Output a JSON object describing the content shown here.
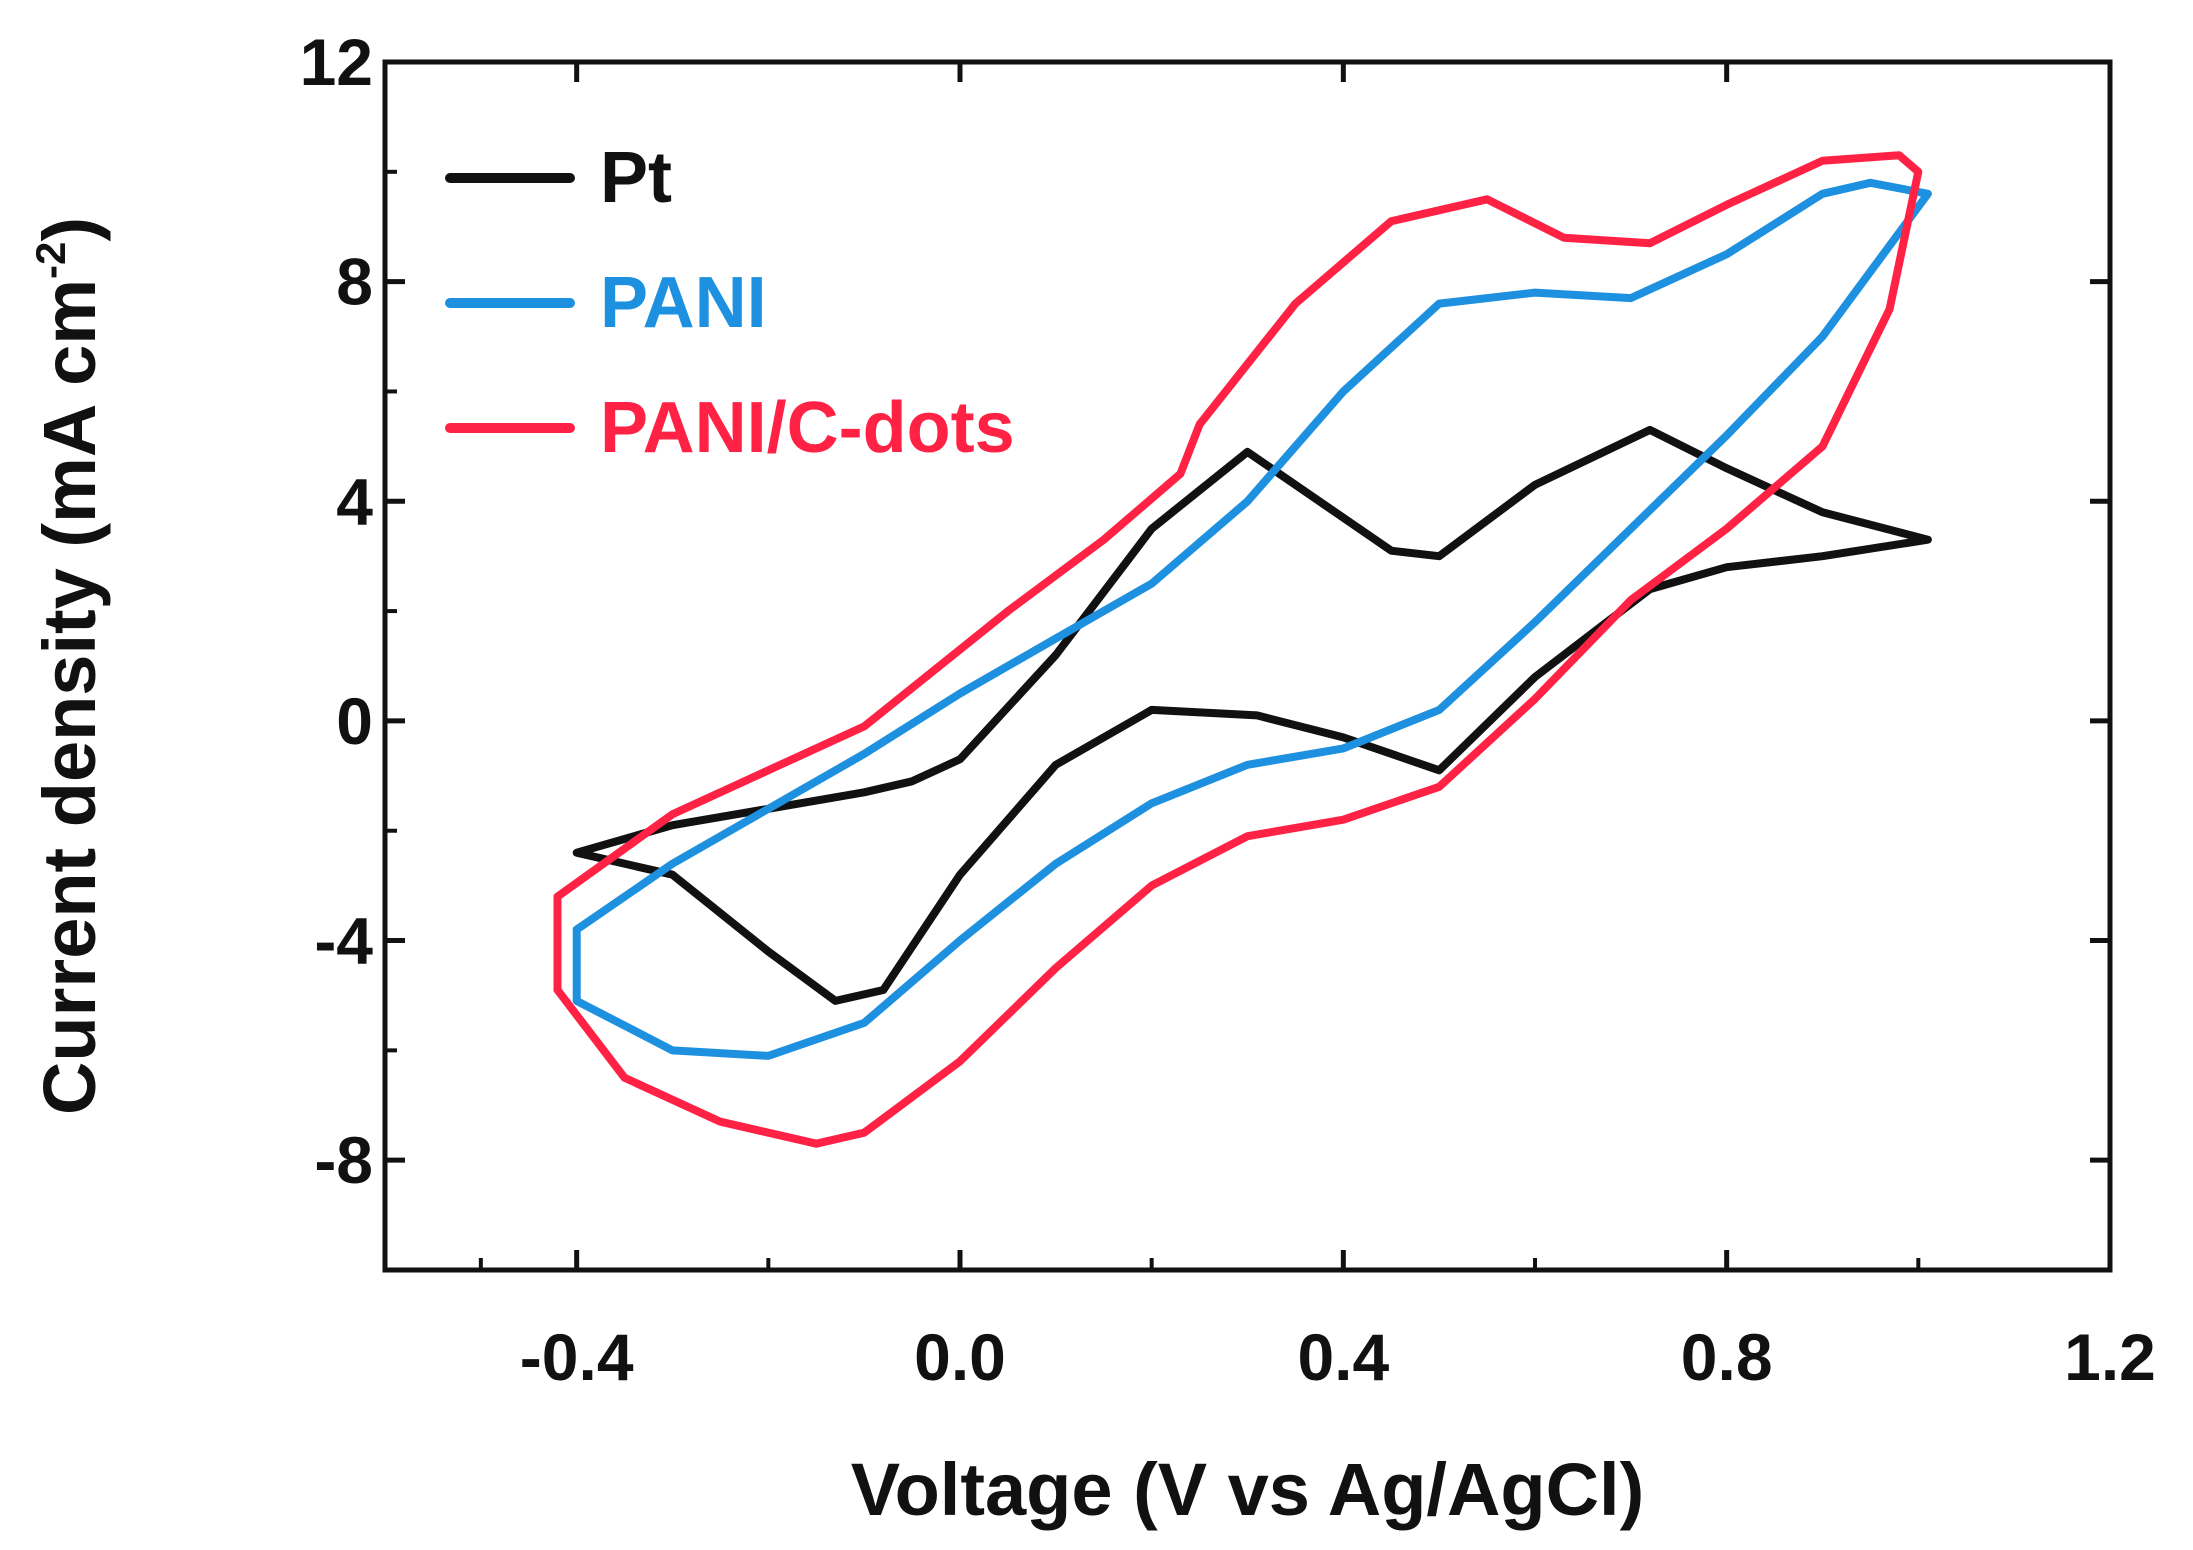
{
  "chart_data": {
    "type": "line",
    "title": "",
    "xlabel": "Voltage (V vs Ag/AgCl)",
    "ylabel": "Current density (mA cm",
    "ylabel_sup": "-2",
    "ylabel_close": ")",
    "xlim": [
      -0.6,
      1.2
    ],
    "ylim": [
      -10,
      12
    ],
    "x_ticks": [
      -0.4,
      0.0,
      0.4,
      0.8,
      1.2
    ],
    "x_tick_labels": [
      "-0.4",
      "0.0",
      "0.4",
      "0.8",
      "1.2"
    ],
    "y_ticks": [
      -8,
      -4,
      0,
      4,
      8,
      12
    ],
    "y_tick_labels": [
      "-8",
      "-4",
      "0",
      "4",
      "8",
      "12"
    ],
    "legend_position": "top-left",
    "grid": false,
    "series": [
      {
        "name": "Pt",
        "color": "#111111",
        "x": [
          -0.4,
          -0.3,
          -0.2,
          -0.13,
          -0.08,
          0.0,
          0.1,
          0.2,
          0.31,
          0.4,
          0.5,
          0.6,
          0.72,
          0.8,
          0.9,
          1.01,
          0.9,
          0.8,
          0.72,
          0.6,
          0.5,
          0.45,
          0.3,
          0.2,
          0.1,
          0.0,
          -0.05,
          -0.1,
          -0.2,
          -0.3,
          -0.4
        ],
        "y": [
          -2.4,
          -2.8,
          -4.2,
          -5.1,
          -4.9,
          -2.8,
          -0.8,
          0.2,
          0.1,
          -0.3,
          -0.9,
          0.8,
          2.4,
          2.8,
          3.0,
          3.3,
          3.8,
          4.6,
          5.3,
          4.3,
          3.0,
          3.1,
          4.9,
          3.5,
          1.2,
          -0.7,
          -1.1,
          -1.3,
          -1.6,
          -1.9,
          -2.4
        ]
      },
      {
        "name": "PANI",
        "color": "#1e90e0",
        "x": [
          -0.4,
          -0.3,
          -0.2,
          -0.1,
          0.0,
          0.1,
          0.2,
          0.3,
          0.4,
          0.5,
          0.6,
          0.7,
          0.8,
          0.9,
          1.01,
          0.95,
          0.9,
          0.8,
          0.7,
          0.6,
          0.5,
          0.4,
          0.3,
          0.2,
          0.1,
          0.0,
          -0.1,
          -0.2,
          -0.3,
          -0.4
        ],
        "y": [
          -5.1,
          -6.0,
          -6.1,
          -5.5,
          -4.0,
          -2.6,
          -1.5,
          -0.8,
          -0.5,
          0.2,
          1.8,
          3.5,
          5.2,
          7.0,
          9.6,
          9.8,
          9.6,
          8.5,
          7.7,
          7.8,
          7.6,
          6.0,
          4.0,
          2.5,
          1.5,
          0.5,
          -0.6,
          -1.6,
          -2.6,
          -3.8
        ]
      },
      {
        "name": "PANI/C-dots",
        "color": "#ff2244",
        "x": [
          -0.42,
          -0.35,
          -0.25,
          -0.15,
          -0.1,
          0.0,
          0.1,
          0.2,
          0.3,
          0.4,
          0.5,
          0.6,
          0.7,
          0.8,
          0.9,
          0.97,
          1.0,
          0.98,
          0.9,
          0.8,
          0.72,
          0.63,
          0.55,
          0.45,
          0.35,
          0.25,
          0.23,
          0.15,
          0.05,
          -0.1,
          -0.2,
          -0.3,
          -0.42
        ],
        "y": [
          -4.9,
          -6.5,
          -7.3,
          -7.7,
          -7.5,
          -6.2,
          -4.5,
          -3.0,
          -2.1,
          -1.8,
          -1.2,
          0.4,
          2.2,
          3.5,
          5.0,
          7.5,
          10.0,
          10.3,
          10.2,
          9.4,
          8.7,
          8.8,
          9.5,
          9.1,
          7.6,
          5.4,
          4.5,
          3.3,
          2.0,
          -0.1,
          -0.9,
          -1.7,
          -3.2
        ]
      }
    ]
  }
}
